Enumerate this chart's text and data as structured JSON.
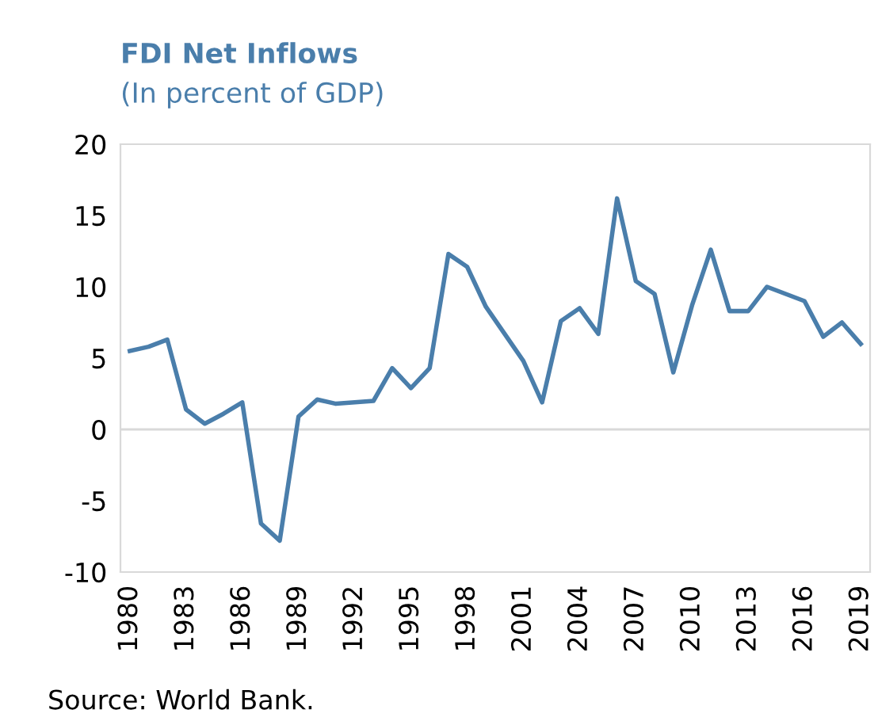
{
  "chart_data": {
    "type": "line",
    "title": "FDI Net Inflows",
    "subtitle": "(In percent of GDP)",
    "annotations": [
      "Source: World Bank."
    ],
    "x": [
      1980,
      1981,
      1982,
      1983,
      1984,
      1985,
      1986,
      1987,
      1988,
      1989,
      1990,
      1991,
      1992,
      1993,
      1994,
      1995,
      1996,
      1997,
      1998,
      1999,
      2000,
      2001,
      2002,
      2003,
      2004,
      2005,
      2006,
      2007,
      2008,
      2009,
      2010,
      2011,
      2012,
      2013,
      2014,
      2015,
      2016,
      2017,
      2018,
      2019
    ],
    "series": [
      {
        "color": "#4a7eab",
        "values": [
          5.5,
          5.8,
          6.3,
          1.4,
          0.4,
          1.1,
          1.9,
          -6.6,
          -7.8,
          0.9,
          2.1,
          1.8,
          1.9,
          2.0,
          4.3,
          2.9,
          4.3,
          12.3,
          11.4,
          8.6,
          6.7,
          4.8,
          1.9,
          7.6,
          8.5,
          6.7,
          16.2,
          10.4,
          9.5,
          4.0,
          8.7,
          12.6,
          8.3,
          8.3,
          10.0,
          9.5,
          9.0,
          6.5,
          7.5,
          6.0
        ]
      }
    ],
    "xlim": [
      1979.5,
      2019.5
    ],
    "ylim": [
      -10,
      20
    ],
    "xticks": [
      1980,
      1983,
      1986,
      1989,
      1992,
      1995,
      1998,
      2001,
      2004,
      2007,
      2010,
      2013,
      2016,
      2019
    ],
    "yticks": [
      -10,
      -5,
      0,
      5,
      10,
      15,
      20
    ],
    "ref_lines": [
      {
        "axis": "y",
        "value": 0,
        "color": "#d9d9d9"
      }
    ],
    "grid": false,
    "legend": false,
    "marker": "none",
    "line_style": "solid"
  }
}
